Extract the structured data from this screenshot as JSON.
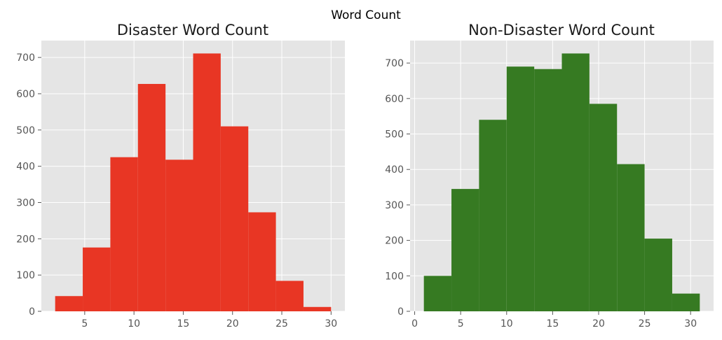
{
  "suptitle": "Word Count",
  "colors": {
    "background": "#e5e5e5",
    "grid": "#ffffff",
    "tick_text": "#555555",
    "disaster": "#e83624",
    "non_disaster": "#367a22"
  },
  "chart_data": [
    {
      "type": "bar",
      "subtype": "histogram",
      "title": "Disaster Word Count",
      "xlabel": "",
      "ylabel": "",
      "color": "#e83624",
      "bin_edges": [
        2,
        4.8,
        7.6,
        10.4,
        13.2,
        16,
        18.8,
        21.6,
        24.4,
        27.2,
        30
      ],
      "values": [
        42,
        176,
        425,
        627,
        418,
        711,
        510,
        273,
        84,
        12
      ],
      "xlim": [
        0.6,
        31.4
      ],
      "ylim": [
        0,
        746.55
      ],
      "xticks": [
        5,
        10,
        15,
        20,
        25,
        30
      ],
      "yticks": [
        0,
        100,
        200,
        300,
        400,
        500,
        600,
        700
      ],
      "grid": true
    },
    {
      "type": "bar",
      "subtype": "histogram",
      "title": "Non-Disaster Word Count",
      "xlabel": "",
      "ylabel": "",
      "color": "#367a22",
      "bin_edges": [
        1,
        4,
        7,
        10,
        13,
        16,
        19,
        22,
        25,
        28,
        31
      ],
      "values": [
        100,
        345,
        540,
        690,
        683,
        727,
        585,
        415,
        205,
        50
      ],
      "xlim": [
        -0.5,
        32.5
      ],
      "ylim": [
        0,
        763.35
      ],
      "xticks": [
        0,
        5,
        10,
        15,
        20,
        25,
        30
      ],
      "yticks": [
        0,
        100,
        200,
        300,
        400,
        500,
        600,
        700
      ],
      "grid": true
    }
  ]
}
